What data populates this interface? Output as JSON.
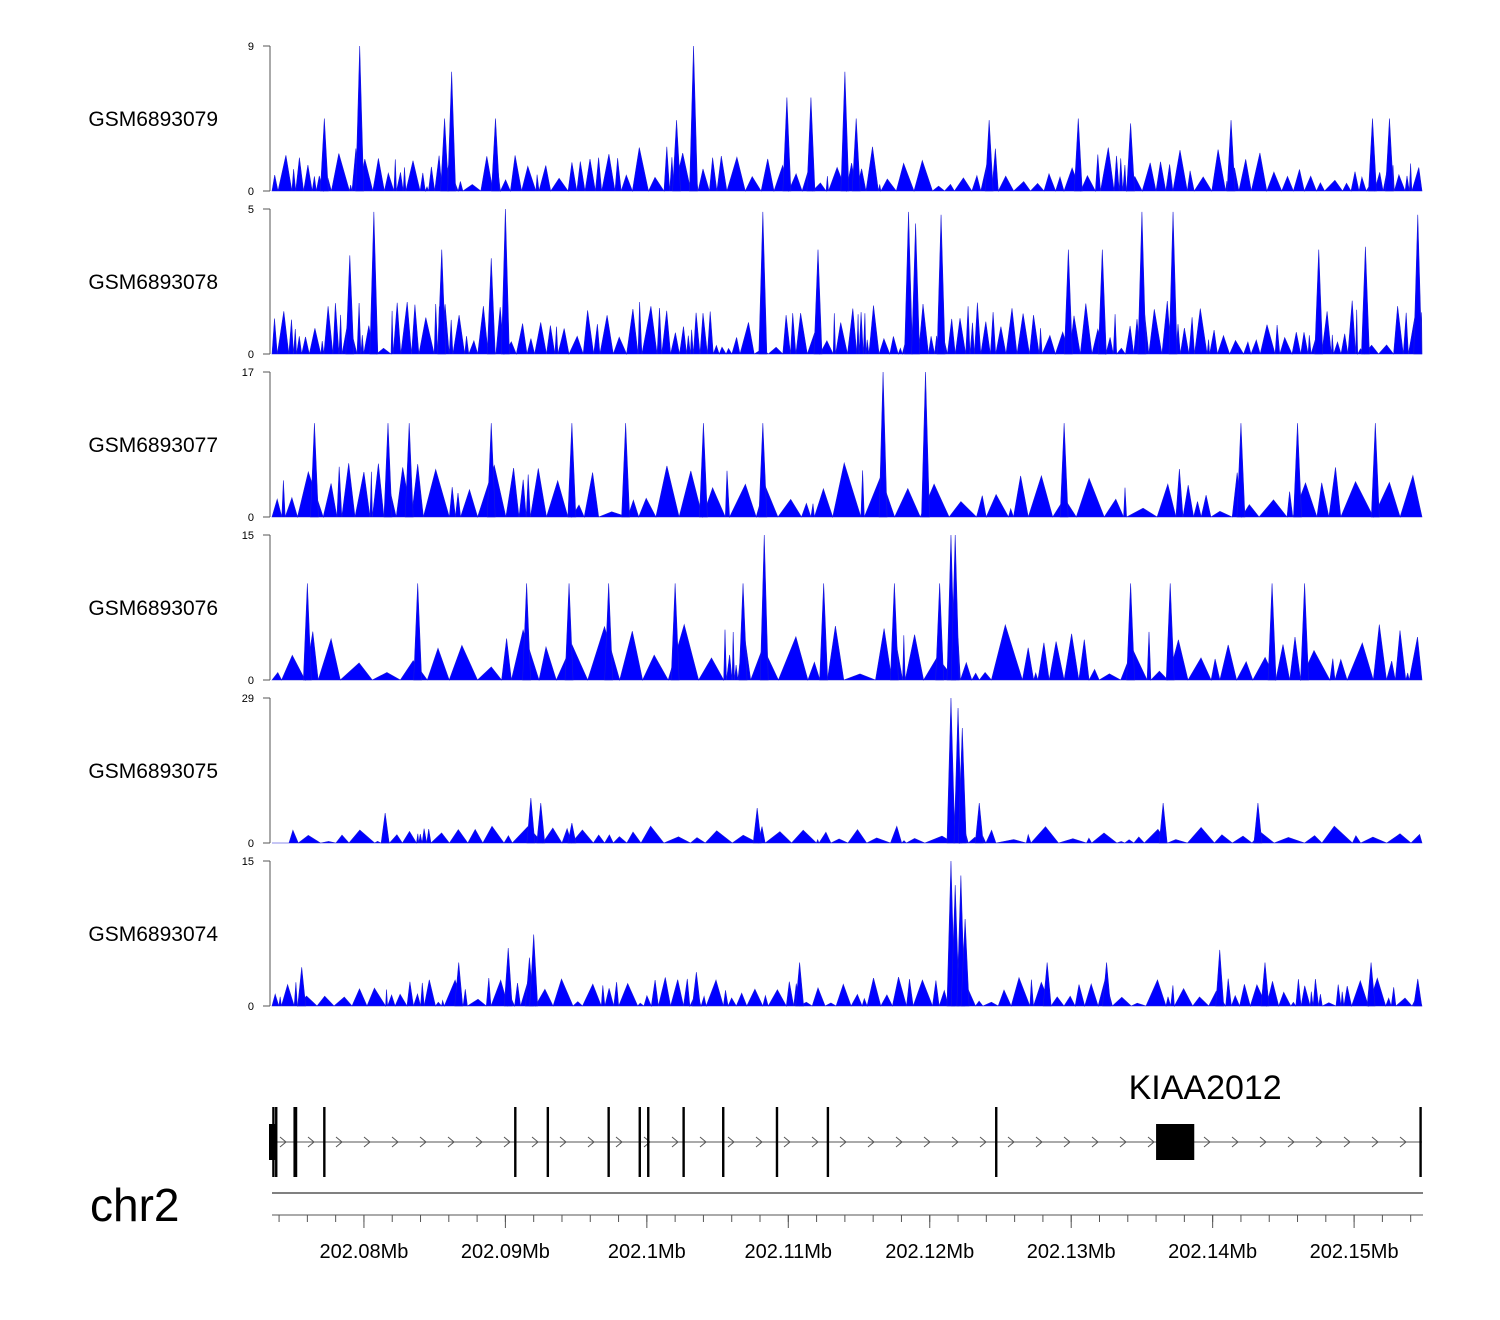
{
  "chart_data": {
    "type": "area",
    "title": "",
    "color": "#0000ff",
    "genome_region": {
      "chromosome": "chr2",
      "start_mb": 202.0735,
      "end_mb": 202.1548
    },
    "tracks": [
      {
        "name": "GSM6893079",
        "ylim": [
          0,
          9
        ],
        "ymax_label": "9",
        "ymin_label": "0",
        "peaks": [
          [
            202.0772,
            4.5
          ],
          [
            202.0797,
            9
          ],
          [
            202.0857,
            4.5
          ],
          [
            202.0862,
            7.4
          ],
          [
            202.0893,
            4.5
          ],
          [
            202.1021,
            4.4
          ],
          [
            202.1033,
            9
          ],
          [
            202.1099,
            5.8
          ],
          [
            202.1116,
            5.8
          ],
          [
            202.114,
            7.4
          ],
          [
            202.1148,
            4.5
          ],
          [
            202.1242,
            4.4
          ],
          [
            202.1305,
            4.5
          ],
          [
            202.1342,
            4.2
          ],
          [
            202.1413,
            4.4
          ],
          [
            202.1513,
            4.5
          ],
          [
            202.1525,
            4.5
          ]
        ],
        "noise": 2.4,
        "density": 0.6,
        "seed": 11
      },
      {
        "name": "GSM6893078",
        "ylim": [
          0,
          5
        ],
        "ymax_label": "5",
        "ymin_label": "0",
        "peaks": [
          [
            202.079,
            3.4
          ],
          [
            202.0807,
            4.9
          ],
          [
            202.0855,
            3.6
          ],
          [
            202.089,
            3.3
          ],
          [
            202.09,
            5
          ],
          [
            202.1082,
            4.9
          ],
          [
            202.1121,
            3.6
          ],
          [
            202.1185,
            4.9
          ],
          [
            202.119,
            4.5
          ],
          [
            202.1208,
            4.8
          ],
          [
            202.1298,
            3.6
          ],
          [
            202.1322,
            3.6
          ],
          [
            202.135,
            4.9
          ],
          [
            202.1372,
            4.9
          ],
          [
            202.1475,
            3.6
          ],
          [
            202.1508,
            3.7
          ],
          [
            202.1545,
            4.8
          ]
        ],
        "noise": 1.6,
        "density": 0.75,
        "seed": 23
      },
      {
        "name": "GSM6893077",
        "ylim": [
          0,
          17
        ],
        "ymax_label": "17",
        "ymin_label": "0",
        "peaks": [
          [
            202.0765,
            11
          ],
          [
            202.0817,
            11
          ],
          [
            202.0832,
            11
          ],
          [
            202.089,
            11
          ],
          [
            202.0947,
            11
          ],
          [
            202.0985,
            11
          ],
          [
            202.104,
            11
          ],
          [
            202.1082,
            11
          ],
          [
            202.1167,
            17
          ],
          [
            202.1197,
            17
          ],
          [
            202.1295,
            11
          ],
          [
            202.142,
            11
          ],
          [
            202.146,
            11
          ],
          [
            202.1515,
            11
          ]
        ],
        "noise": 5.5,
        "density": 0.32,
        "seed": 37
      },
      {
        "name": "GSM6893076",
        "ylim": [
          0,
          15
        ],
        "ymax_label": "15",
        "ymin_label": "0",
        "peaks": [
          [
            202.076,
            10
          ],
          [
            202.0838,
            10
          ],
          [
            202.0915,
            10
          ],
          [
            202.0945,
            10
          ],
          [
            202.0973,
            10
          ],
          [
            202.102,
            10
          ],
          [
            202.1068,
            10
          ],
          [
            202.1083,
            15
          ],
          [
            202.1125,
            10
          ],
          [
            202.1175,
            10
          ],
          [
            202.1207,
            10
          ],
          [
            202.1215,
            15
          ],
          [
            202.1218,
            15
          ],
          [
            202.1342,
            10
          ],
          [
            202.137,
            10
          ],
          [
            202.1442,
            10
          ],
          [
            202.1465,
            10
          ]
        ],
        "noise": 5,
        "density": 0.33,
        "seed": 41
      },
      {
        "name": "GSM6893075",
        "ylim": [
          0,
          29
        ],
        "ymax_label": "29",
        "ymin_label": "0",
        "peaks": [
          [
            202.0815,
            6
          ],
          [
            202.0918,
            9
          ],
          [
            202.0925,
            8
          ],
          [
            202.0947,
            4
          ],
          [
            202.1078,
            7
          ],
          [
            202.1215,
            29
          ],
          [
            202.122,
            27
          ],
          [
            202.1223,
            23
          ],
          [
            202.1235,
            8
          ],
          [
            202.1365,
            8
          ],
          [
            202.1432,
            8
          ]
        ],
        "noise": 3,
        "density": 0.35,
        "seed": 53
      },
      {
        "name": "GSM6893074",
        "ylim": [
          0,
          15
        ],
        "ymax_label": "15",
        "ymin_label": "0",
        "peaks": [
          [
            202.0756,
            4
          ],
          [
            202.0867,
            4.5
          ],
          [
            202.0902,
            6
          ],
          [
            202.0917,
            5
          ],
          [
            202.092,
            7.4
          ],
          [
            202.1035,
            3.5
          ],
          [
            202.1108,
            4.5
          ],
          [
            202.1215,
            15
          ],
          [
            202.1218,
            12.5
          ],
          [
            202.1222,
            13.5
          ],
          [
            202.1225,
            9
          ],
          [
            202.1283,
            4.5
          ],
          [
            202.1325,
            4.5
          ],
          [
            202.1405,
            5.8
          ],
          [
            202.1437,
            4.5
          ],
          [
            202.1512,
            4.5
          ],
          [
            202.1545,
            2.8
          ]
        ],
        "noise": 2.6,
        "density": 0.55,
        "seed": 67
      }
    ],
    "gene": {
      "name": "KIAA2012",
      "strand": "+",
      "start_mb": 202.0735,
      "end_mb": 202.1548,
      "exons_mb": [
        202.0736,
        202.0738,
        202.0751,
        202.0752,
        202.0772,
        202.0907,
        202.093,
        202.0973,
        202.0995,
        202.1001,
        202.1026,
        202.1054,
        202.1092,
        202.1128,
        202.1247,
        202.1547
      ],
      "cds_block_mb": [
        202.136,
        202.1387
      ]
    },
    "axis": {
      "chromosome_label": "chr2",
      "ticks_mb": [
        202.08,
        202.09,
        202.1,
        202.11,
        202.12,
        202.13,
        202.14,
        202.15
      ],
      "tick_labels": [
        "202.08Mb",
        "202.09Mb",
        "202.1Mb",
        "202.11Mb",
        "202.12Mb",
        "202.13Mb",
        "202.14Mb",
        "202.15Mb"
      ],
      "minor_step_mb": 0.002
    }
  }
}
